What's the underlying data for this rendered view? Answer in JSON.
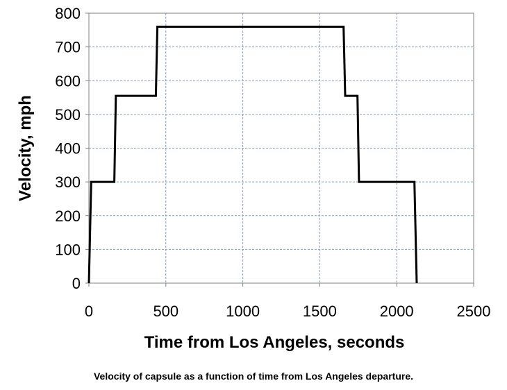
{
  "chart_data": {
    "type": "line",
    "xlabel": "Time from Los Angeles, seconds",
    "ylabel": "Velocity, mph",
    "caption": "Velocity of capsule as a function of time from Los Angeles departure.",
    "xlim": [
      0,
      2500
    ],
    "ylim": [
      0,
      800
    ],
    "x_ticks": [
      0,
      500,
      1000,
      1500,
      2000,
      2500
    ],
    "y_ticks": [
      0,
      100,
      200,
      300,
      400,
      500,
      600,
      700,
      800
    ],
    "grid": true,
    "grid_style": "dashed",
    "legend": "none",
    "series": [
      {
        "color": "#000000",
        "x": [
          0,
          15,
          165,
          175,
          435,
          445,
          1655,
          1665,
          1745,
          1755,
          2115,
          2130
        ],
        "y": [
          0,
          300,
          300,
          555,
          555,
          760,
          760,
          555,
          555,
          300,
          300,
          0
        ]
      }
    ]
  }
}
